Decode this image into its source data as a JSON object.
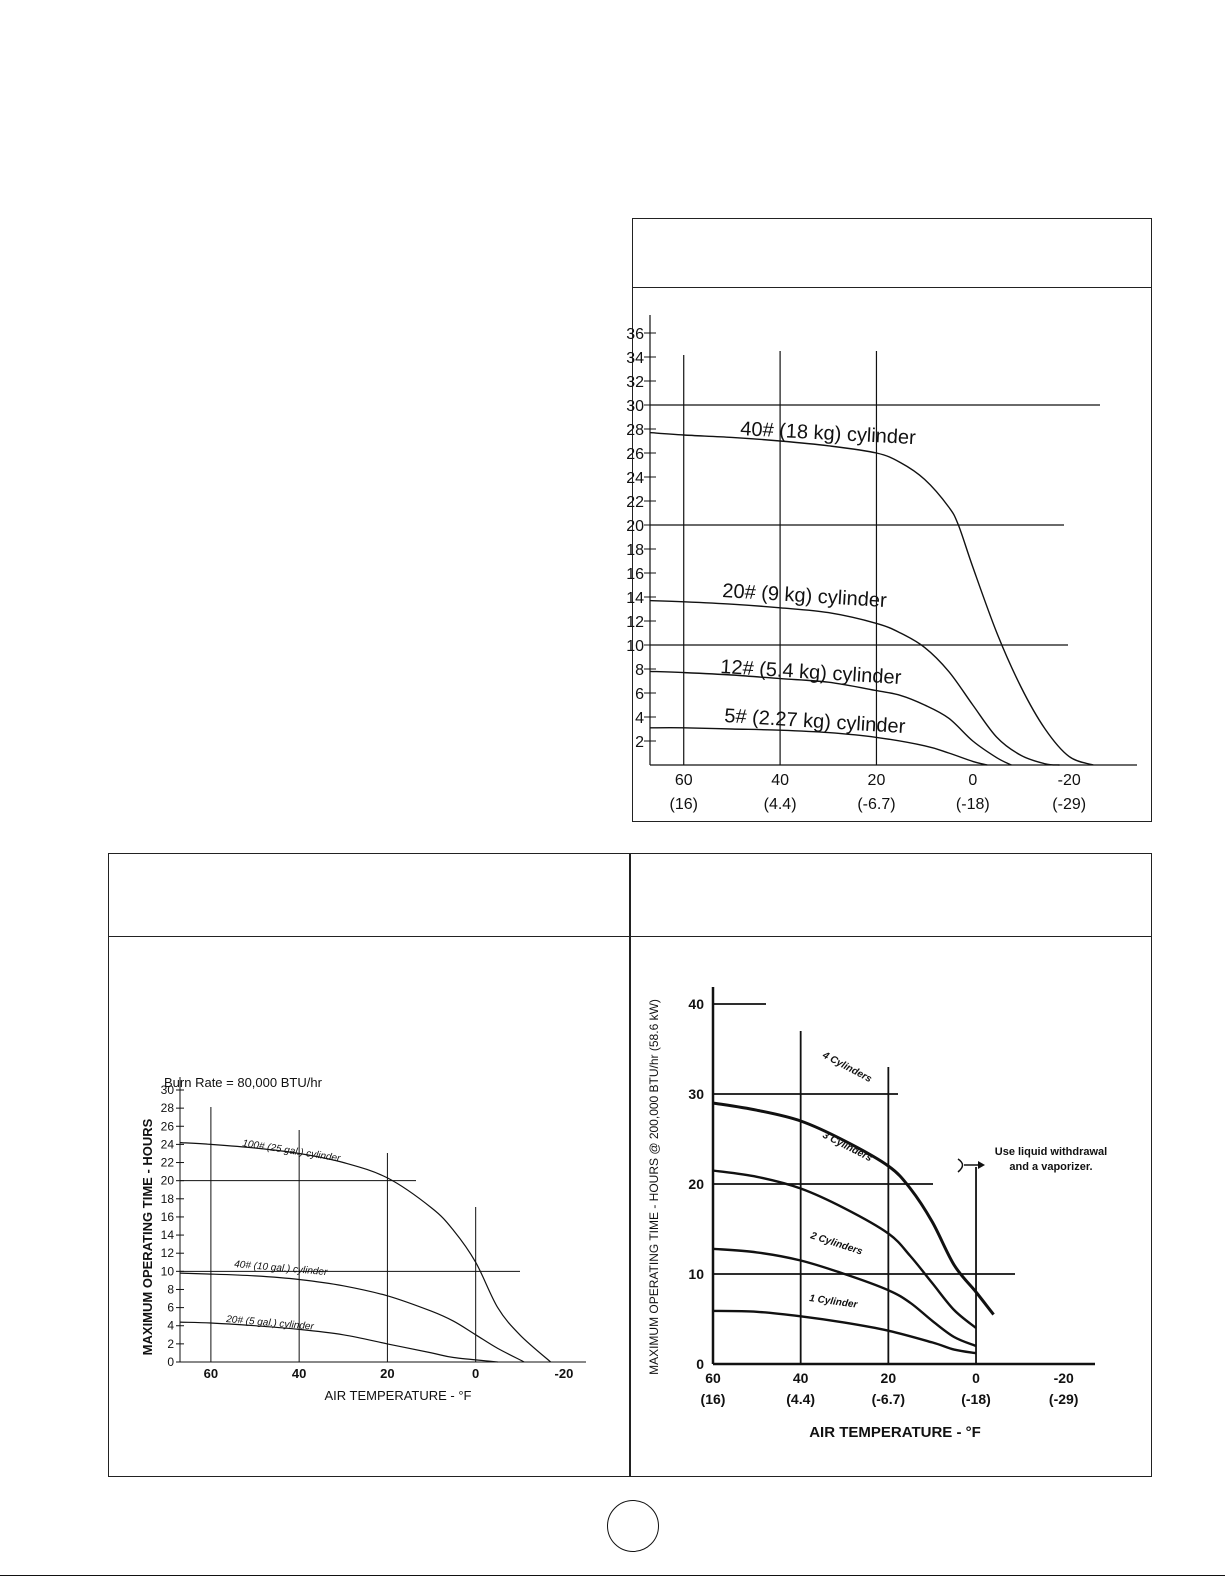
{
  "chart_data": [
    {
      "type": "line",
      "title": "",
      "xlabel": "",
      "ylabel": "",
      "x_ticks": [
        {
          "value": 60,
          "label": "60",
          "sublabel": "(16)"
        },
        {
          "value": 40,
          "label": "40",
          "sublabel": "(4.4)"
        },
        {
          "value": 20,
          "label": "20",
          "sublabel": "(-6.7)"
        },
        {
          "value": 0,
          "label": "0",
          "sublabel": "(-18)"
        },
        {
          "value": -20,
          "label": "-20",
          "sublabel": "(-29)"
        }
      ],
      "y_ticks": [
        2,
        4,
        6,
        8,
        10,
        12,
        14,
        16,
        18,
        20,
        22,
        24,
        26,
        28,
        30,
        32,
        34,
        36
      ],
      "xlim": [
        67,
        -32
      ],
      "ylim": [
        0,
        36
      ],
      "grid": {
        "horizontal": [
          10,
          20,
          30
        ],
        "vertical": [
          60,
          40,
          20
        ]
      },
      "series": [
        {
          "name": "40# (18 kg) cylinder",
          "x": [
            67,
            60,
            50,
            40,
            30,
            20,
            15,
            10,
            5,
            3,
            0,
            -5,
            -10,
            -15,
            -20,
            -25
          ],
          "y": [
            27.7,
            27.5,
            27.3,
            27.0,
            26.6,
            26.0,
            25.2,
            23.8,
            21.5,
            20.0,
            16.5,
            11.0,
            6.5,
            3.0,
            0.7,
            0
          ]
        },
        {
          "name": "20# (9 kg) cylinder",
          "x": [
            67,
            60,
            50,
            40,
            30,
            20,
            15,
            10,
            5,
            0,
            -5,
            -10,
            -15,
            -18
          ],
          "y": [
            13.7,
            13.6,
            13.4,
            13.1,
            12.7,
            11.8,
            11.0,
            9.8,
            7.8,
            5.0,
            2.3,
            0.8,
            0.1,
            0
          ]
        },
        {
          "name": "12# (5.4 kg) cylinder",
          "x": [
            67,
            60,
            50,
            40,
            30,
            20,
            15,
            10,
            5,
            0,
            -5,
            -8
          ],
          "y": [
            7.8,
            7.7,
            7.5,
            7.2,
            6.9,
            6.2,
            5.8,
            5.0,
            3.9,
            2.0,
            0.6,
            0
          ]
        },
        {
          "name": "5# (2.27 kg) cylinder",
          "x": [
            67,
            60,
            50,
            40,
            30,
            20,
            10,
            5,
            0,
            -3
          ],
          "y": [
            3.1,
            3.1,
            3.0,
            2.9,
            2.7,
            2.3,
            1.6,
            1.0,
            0.3,
            0
          ]
        }
      ]
    },
    {
      "type": "line",
      "title": "Burn Rate = 80,000 BTU/hr",
      "xlabel": "AIR TEMPERATURE - °F",
      "ylabel": "MAXIMUM OPERATING TIME - HOURS",
      "x_ticks": [
        {
          "value": 60,
          "label": "60"
        },
        {
          "value": 40,
          "label": "40"
        },
        {
          "value": 20,
          "label": "20"
        },
        {
          "value": 0,
          "label": "0"
        },
        {
          "value": -20,
          "label": "-20"
        }
      ],
      "y_ticks": [
        0,
        2,
        4,
        6,
        8,
        10,
        12,
        14,
        16,
        18,
        20,
        22,
        24,
        26,
        28,
        30
      ],
      "xlim": [
        67,
        -25
      ],
      "ylim": [
        0,
        30
      ],
      "grid": {
        "horizontal": [
          10,
          20
        ],
        "vertical": [
          60,
          40,
          20,
          0
        ]
      },
      "series": [
        {
          "name": "100# (25 gal.) cylinder",
          "x": [
            67,
            60,
            50,
            40,
            30,
            20,
            10,
            5,
            0,
            -5,
            -10,
            -17
          ],
          "y": [
            24.2,
            24.0,
            23.6,
            23.0,
            22.0,
            20.3,
            17.0,
            14.5,
            11.0,
            6.0,
            3.0,
            0
          ]
        },
        {
          "name": "40# (10 gal.) cylinder",
          "x": [
            67,
            60,
            50,
            40,
            30,
            20,
            10,
            5,
            0,
            -5,
            -11
          ],
          "y": [
            9.8,
            9.7,
            9.5,
            9.1,
            8.4,
            7.3,
            5.6,
            4.5,
            3.0,
            1.5,
            0
          ]
        },
        {
          "name": "20# (5 gal.) cylinder",
          "x": [
            67,
            60,
            50,
            40,
            30,
            20,
            10,
            5,
            -5
          ],
          "y": [
            4.4,
            4.3,
            4.0,
            3.6,
            3.0,
            2.0,
            1.0,
            0.5,
            0
          ]
        }
      ]
    },
    {
      "type": "line",
      "title": "",
      "xlabel": "AIR TEMPERATURE - °F",
      "ylabel": "MAXIMUM OPERATING TIME - HOURS @ 200,000 BTU/hr (58.6 kW)",
      "annotation": "Use liquid withdrawal and a vaporizer.",
      "annotation_lines": [
        "Use liquid withdrawal",
        "and a vaporizer."
      ],
      "x_ticks": [
        {
          "value": 60,
          "label": "60",
          "sublabel": "(16)"
        },
        {
          "value": 40,
          "label": "40",
          "sublabel": "(4.4)"
        },
        {
          "value": 20,
          "label": "20",
          "sublabel": "(-6.7)"
        },
        {
          "value": 0,
          "label": "0",
          "sublabel": "(-18)"
        },
        {
          "value": -20,
          "label": "-20",
          "sublabel": "(-29)"
        }
      ],
      "y_ticks": [
        0,
        10,
        20,
        30,
        40
      ],
      "xlim": [
        60,
        -26
      ],
      "ylim": [
        0,
        43
      ],
      "series": [
        {
          "name": "4 Cylinders",
          "x": [
            60,
            50,
            40,
            30,
            20,
            15,
            10,
            5,
            0,
            -4
          ],
          "y": [
            29.0,
            28.2,
            27.0,
            24.8,
            22.0,
            19.5,
            15.8,
            11.0,
            8.0,
            5.5
          ]
        },
        {
          "name": "3 Cylinders",
          "x": [
            60,
            50,
            40,
            30,
            20,
            15,
            10,
            5,
            0
          ],
          "y": [
            21.5,
            20.8,
            19.5,
            17.3,
            14.5,
            12.0,
            9.0,
            6.0,
            4.0
          ]
        },
        {
          "name": "2 Cylinders",
          "x": [
            60,
            50,
            40,
            30,
            20,
            15,
            10,
            5,
            0
          ],
          "y": [
            12.8,
            12.4,
            11.5,
            10.0,
            8.2,
            6.8,
            4.8,
            3.0,
            2.0
          ]
        },
        {
          "name": "1 Cylinder",
          "x": [
            60,
            50,
            40,
            30,
            20,
            10,
            5,
            0
          ],
          "y": [
            5.9,
            5.8,
            5.3,
            4.6,
            3.7,
            2.4,
            1.6,
            1.2
          ]
        }
      ]
    }
  ]
}
